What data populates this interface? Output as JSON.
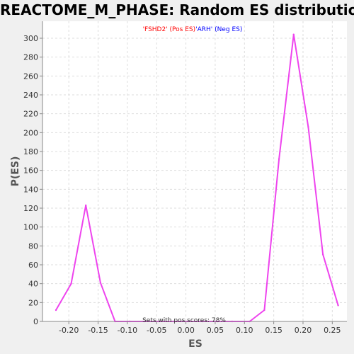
{
  "chart_data": {
    "type": "line",
    "title": "REACTOME_M_PHASE: Random ES distribution",
    "xlabel": "ES",
    "ylabel": "P(ES)",
    "xlim": [
      -0.245,
      0.275
    ],
    "ylim": [
      0,
      318
    ],
    "x_ticks": [
      -0.2,
      -0.15,
      -0.1,
      -0.05,
      0.0,
      0.05,
      0.1,
      0.15,
      0.2,
      0.25
    ],
    "x_tick_labels": [
      "-0.20",
      "-0.15",
      "-0.10",
      "-0.05",
      "0.00",
      "0.05",
      "0.10",
      "0.15",
      "0.20",
      "0.25"
    ],
    "y_ticks": [
      0,
      20,
      40,
      60,
      80,
      100,
      120,
      140,
      160,
      180,
      200,
      220,
      240,
      260,
      280,
      300
    ],
    "grid": true,
    "legend": {
      "placement": "top-center",
      "entries": [
        {
          "text": "'FSHD2' (Pos ES)",
          "color": "#ff0000"
        },
        {
          "text": "'ARH' (Neg ES)",
          "color": "#0000ff"
        }
      ]
    },
    "annotation": "Sets with pos scores: 78%",
    "series": [
      {
        "color": "#ee44ee",
        "x": [
          -0.222,
          -0.196,
          -0.171,
          -0.146,
          -0.121,
          -0.096,
          -0.071,
          -0.046,
          -0.021,
          0.004,
          0.029,
          0.054,
          0.079,
          0.109,
          0.134,
          0.159,
          0.184,
          0.209,
          0.234,
          0.26
        ],
        "y": [
          12,
          40,
          123,
          41,
          0,
          0,
          0,
          0,
          0,
          0,
          0,
          0,
          0,
          0,
          12,
          172,
          304,
          206,
          71,
          17
        ]
      }
    ]
  }
}
